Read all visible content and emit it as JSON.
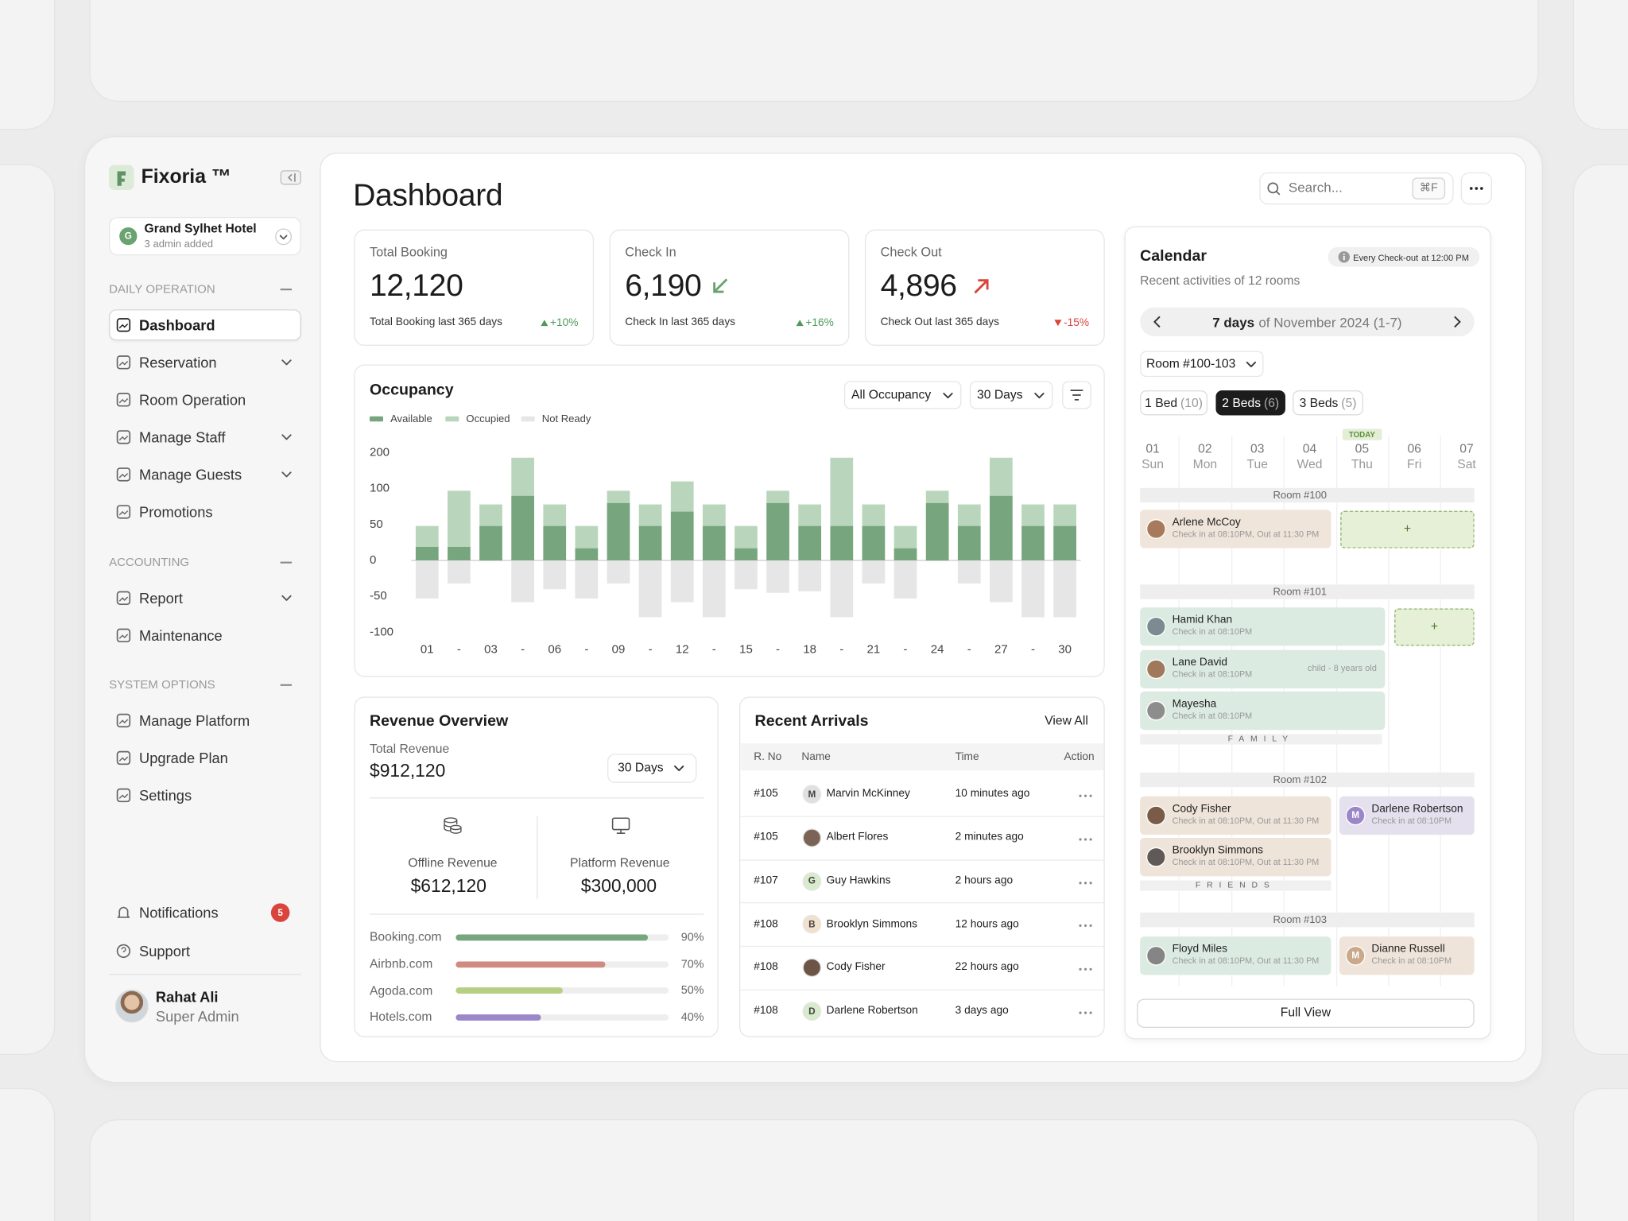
{
  "sidebar": {
    "brand": "Fixoria ™",
    "hotel": {
      "initial": "G",
      "name": "Grand Sylhet Hotel",
      "subtitle": "3 admin added"
    },
    "sections": [
      {
        "title": "DAILY OPERATION",
        "items": [
          {
            "label": "Dashboard",
            "active": true
          },
          {
            "label": "Reservation",
            "expandable": true
          },
          {
            "label": "Room Operation"
          },
          {
            "label": "Manage Staff",
            "expandable": true
          },
          {
            "label": "Manage Guests",
            "expandable": true
          },
          {
            "label": "Promotions"
          }
        ]
      },
      {
        "title": "ACCOUNTING",
        "items": [
          {
            "label": "Report",
            "expandable": true
          },
          {
            "label": "Maintenance"
          }
        ]
      },
      {
        "title": "SYSTEM OPTIONS",
        "items": [
          {
            "label": "Manage Platform"
          },
          {
            "label": "Upgrade Plan"
          },
          {
            "label": "Settings"
          }
        ]
      }
    ],
    "notifications": {
      "label": "Notifications",
      "count": 5
    },
    "support": "Support",
    "user": {
      "name": "Rahat Ali",
      "role": "Super Admin"
    }
  },
  "header": {
    "title": "Dashboard",
    "search_placeholder": "Search...",
    "shortcut": "⌘F"
  },
  "stats": [
    {
      "label": "Total Booking",
      "value": "12,120",
      "footer": "Total Booking last 365 days",
      "change": "+10%",
      "trend": "up"
    },
    {
      "label": "Check In",
      "value": "6,190",
      "footer": "Check In last 365 days",
      "change": "+16%",
      "trend": "up",
      "icon": "arrow-down-left"
    },
    {
      "label": "Check Out",
      "value": "4,896",
      "footer": "Check Out last 365 days",
      "change": "-15%",
      "trend": "down",
      "icon": "arrow-up-right"
    }
  ],
  "chart_data": {
    "type": "bar",
    "stacked": true,
    "title": "Occupancy",
    "filters": [
      "All Occupancy",
      "30 Days"
    ],
    "categories": [
      "01",
      "-",
      "03",
      "-",
      "06",
      "-",
      "09",
      "-",
      "12",
      "-",
      "15",
      "-",
      "18",
      "-",
      "21",
      "-",
      "24",
      "-",
      "27",
      "-",
      "30"
    ],
    "series": [
      {
        "name": "Available",
        "color": "#76a57e",
        "values": [
          19,
          19,
          48,
          90,
          48,
          17,
          80,
          48,
          68,
          48,
          17,
          80,
          48,
          48,
          48,
          17,
          80,
          48,
          90,
          48,
          48
        ]
      },
      {
        "name": "Occupied",
        "color": "#b9d6bc",
        "values": [
          29,
          78,
          30,
          96,
          30,
          31,
          17,
          30,
          52,
          30,
          31,
          17,
          30,
          138,
          30,
          31,
          17,
          30,
          96,
          30,
          30
        ]
      },
      {
        "name": "Not Ready",
        "color": "#e6e6e6",
        "values": [
          -53,
          -32,
          0,
          -58,
          -40,
          -53,
          -32,
          -79,
          -58,
          -79,
          -40,
          -45,
          -43,
          -79,
          -32,
          -53,
          0,
          -32,
          -58,
          -79,
          -79
        ]
      }
    ],
    "ylim": [
      -100,
      200
    ],
    "yticks": [
      200,
      100,
      50,
      0,
      -50,
      -100
    ]
  },
  "revenue": {
    "title": "Revenue Overview",
    "total_label": "Total Revenue",
    "total": "$912,120",
    "period": "30 Days",
    "offline": {
      "label": "Offline Revenue",
      "value": "$612,120"
    },
    "platform": {
      "label": "Platform Revenue",
      "value": "$300,000"
    },
    "channels": {
      "names": [
        "Booking.com",
        "Airbnb.com",
        "Agoda.com",
        "Hotels.com"
      ],
      "values": [
        90,
        70,
        50,
        40
      ],
      "value_labels": [
        "90%",
        "70%",
        "50%",
        "40%"
      ],
      "colors": [
        "#76a57e",
        "#d08a82",
        "#b5cf85",
        "#9a86c8"
      ],
      "xlim": [
        0,
        100
      ]
    }
  },
  "arrivals": {
    "title": "Recent Arrivals",
    "link": "View All",
    "columns": [
      "R. No",
      "Name",
      "Time",
      "Action"
    ],
    "rows": [
      {
        "no": "#105",
        "initial": "M",
        "name": "Marvin McKinney",
        "time": "10 minutes ago"
      },
      {
        "no": "#105",
        "name": "Albert Flores",
        "time": "2 minutes ago"
      },
      {
        "no": "#107",
        "initial": "G",
        "name": "Guy Hawkins",
        "time": "2 hours ago"
      },
      {
        "no": "#108",
        "initial": "B",
        "name": "Brooklyn Simmons",
        "time": "12 hours ago"
      },
      {
        "no": "#108",
        "name": "Cody Fisher",
        "time": "22 hours ago"
      },
      {
        "no": "#108",
        "initial": "D",
        "name": "Darlene Robertson",
        "time": "3 days ago"
      }
    ]
  },
  "calendar": {
    "title": "Calendar",
    "note": "Every Check-out",
    "note_time": "at 12:00 PM",
    "subtitle": "Recent activities of 12 rooms",
    "range_bold": "7 days",
    "range": "of November 2024 (1-7)",
    "room_filter": "Room #100-103",
    "bed_tabs": [
      {
        "label": "1 Bed",
        "count": "(10)"
      },
      {
        "label": "2 Beds",
        "count": "(6)",
        "active": true
      },
      {
        "label": "3 Beds",
        "count": "(5)"
      }
    ],
    "today_label": "TODAY",
    "days": [
      {
        "date": "01",
        "day": "Sun"
      },
      {
        "date": "02",
        "day": "Mon"
      },
      {
        "date": "03",
        "day": "Tue"
      },
      {
        "date": "04",
        "day": "Wed"
      },
      {
        "date": "05",
        "day": "Thu",
        "today": true
      },
      {
        "date": "06",
        "day": "Fri"
      },
      {
        "date": "07",
        "day": "Sat"
      }
    ],
    "add_label": "+",
    "rooms": [
      {
        "name": "Room #100",
        "bookings": [
          {
            "name": "Arlene McCoy",
            "detail": "Check in at 08:10PM, Out at 11:30 PM"
          }
        ]
      },
      {
        "name": "Room #101",
        "group": "FAMILY",
        "bookings": [
          {
            "name": "Hamid Khan",
            "detail": "Check in at 08:10PM"
          },
          {
            "name": "Lane David",
            "detail": "Check in at 08:10PM",
            "note": "child - 8 years old"
          },
          {
            "name": "Mayesha",
            "detail": "Check in at 08:10PM"
          }
        ]
      },
      {
        "name": "Room #102",
        "group": "FRIENDS",
        "bookings": [
          {
            "name": "Cody Fisher",
            "detail": "Check in at 08:10PM, Out at 11:30 PM"
          },
          {
            "name": "Darlene Robertson",
            "initial": "M",
            "detail": "Check in at 08:10PM"
          },
          {
            "name": "Brooklyn Simmons",
            "detail": "Check in at 08:10PM, Out at 11:30 PM"
          }
        ]
      },
      {
        "name": "Room #103",
        "bookings": [
          {
            "name": "Floyd Miles",
            "detail": "Check in at 08:10PM, Out at 11:30 PM"
          },
          {
            "name": "Dianne Russell",
            "initial": "M",
            "detail": "Check in at 08:10PM"
          }
        ]
      }
    ],
    "button": "Full View"
  }
}
